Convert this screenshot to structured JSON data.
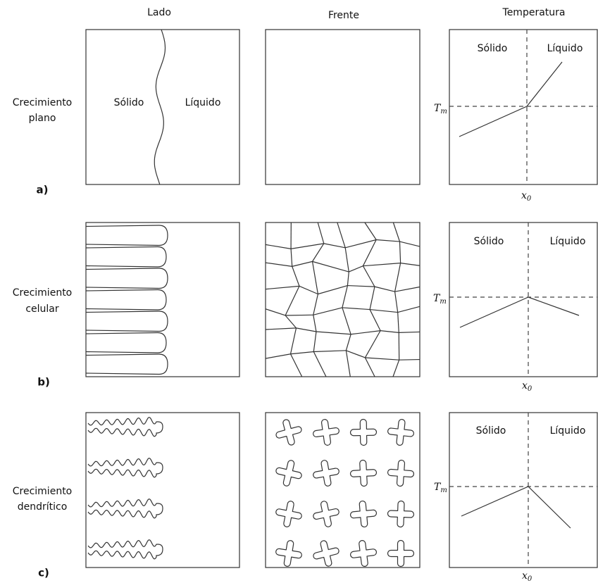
{
  "columns": {
    "side": "Lado",
    "front": "Frente",
    "temperature": "Temperatura"
  },
  "rows": [
    {
      "tag": "a)",
      "label": [
        "Crecimiento",
        "plano"
      ],
      "side": {
        "solid": "Sólido",
        "liquid": "Líquido"
      },
      "temperature": {
        "solid": "Sólido",
        "liquid": "Líquido",
        "tm": {
          "symbol": "T",
          "sub": "m"
        },
        "x0": {
          "symbol": "x",
          "sub": "0"
        }
      }
    },
    {
      "tag": "b)",
      "label": [
        "Crecimiento",
        "celular"
      ],
      "temperature": {
        "solid": "Sólido",
        "liquid": "Líquido",
        "tm": {
          "symbol": "T",
          "sub": "m"
        },
        "x0": {
          "symbol": "x",
          "sub": "0"
        }
      }
    },
    {
      "tag": "c)",
      "label": [
        "Crecimiento",
        "dendrítico"
      ],
      "temperature": {
        "solid": "Sólido",
        "liquid": "Líquido",
        "tm": {
          "symbol": "T",
          "sub": "m"
        },
        "x0": {
          "symbol": "x",
          "sub": "0"
        }
      }
    }
  ]
}
